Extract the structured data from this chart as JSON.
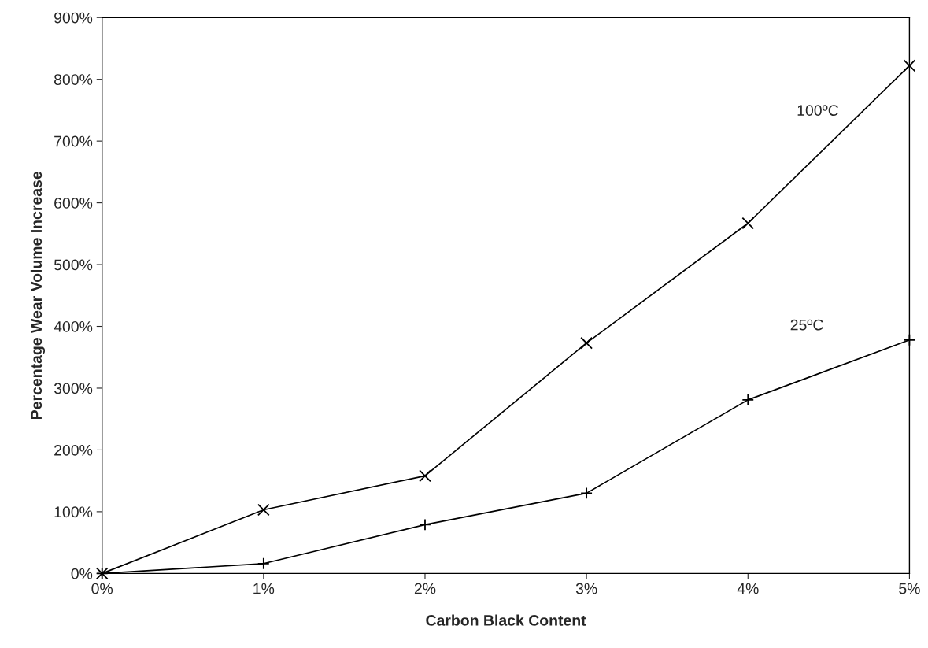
{
  "chart_data": {
    "type": "line",
    "xlabel": "Carbon Black Content",
    "ylabel": "Percentage Wear Volume Increase",
    "x": [
      0,
      1,
      2,
      3,
      4,
      5
    ],
    "series": [
      {
        "name": "100ºC",
        "color": "#000000",
        "marker": "cross",
        "values": [
          0,
          103,
          158,
          373,
          567,
          822
        ]
      },
      {
        "name": "25ºC",
        "color": "#000000",
        "marker": "plus",
        "values": [
          0,
          16,
          79,
          130,
          281,
          378
        ]
      }
    ],
    "xlim": [
      0,
      5
    ],
    "xticks": [
      {
        "value": 0,
        "label": "0%"
      },
      {
        "value": 1,
        "label": "1%"
      },
      {
        "value": 2,
        "label": "2%"
      },
      {
        "value": 3,
        "label": "3%"
      },
      {
        "value": 4,
        "label": "4%"
      },
      {
        "value": 5,
        "label": "5%"
      }
    ],
    "ylim": [
      0,
      900
    ],
    "yticks": [
      {
        "value": 0,
        "label": "0%"
      },
      {
        "value": 100,
        "label": "100%"
      },
      {
        "value": 200,
        "label": "200%"
      },
      {
        "value": 300,
        "label": "300%"
      },
      {
        "value": 400,
        "label": "400%"
      },
      {
        "value": 500,
        "label": "500%"
      },
      {
        "value": 600,
        "label": "600%"
      },
      {
        "value": 700,
        "label": "700%"
      },
      {
        "value": 800,
        "label": "800%"
      },
      {
        "value": 900,
        "label": "900%"
      }
    ],
    "grid": false,
    "legend": false,
    "line_style": "solid"
  }
}
